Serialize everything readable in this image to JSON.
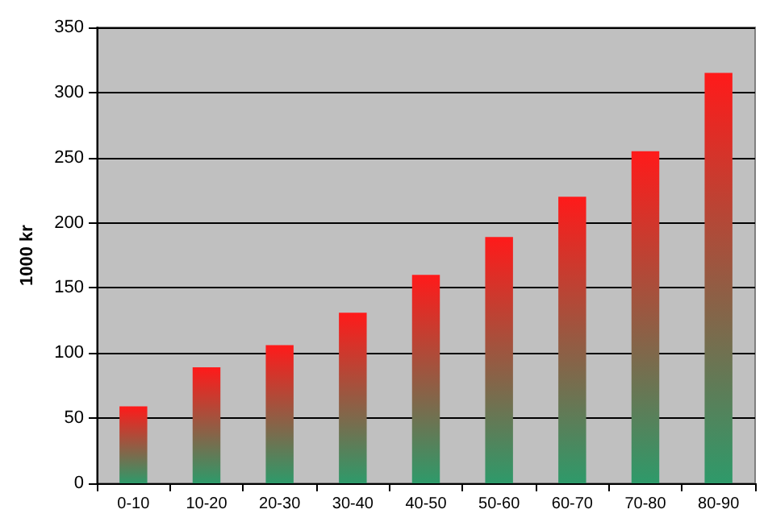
{
  "chart_data": {
    "type": "bar",
    "ylabel": "1000 kr",
    "categories": [
      "0-10",
      "10-20",
      "20-30",
      "30-40",
      "40-50",
      "50-60",
      "60-70",
      "70-80",
      "80-90"
    ],
    "values": [
      59,
      89,
      106,
      131,
      160,
      189,
      220,
      255,
      315
    ],
    "color": "#ff1a1a",
    "ylim": [
      0,
      350
    ],
    "yticks": [
      0,
      50,
      100,
      150,
      200,
      250,
      300,
      350
    ],
    "grid": "y"
  }
}
